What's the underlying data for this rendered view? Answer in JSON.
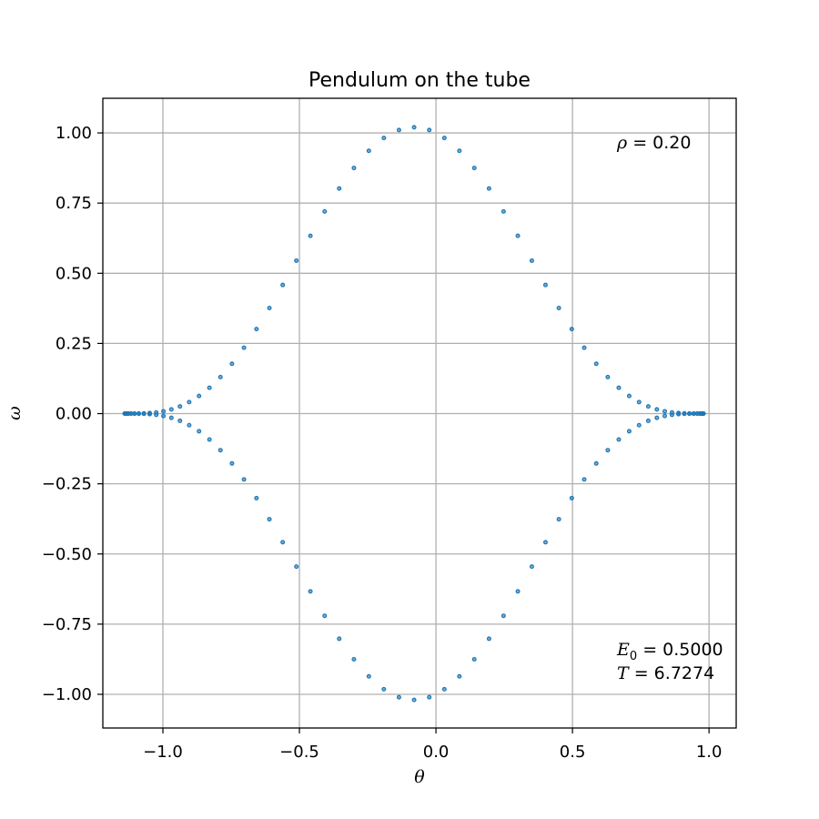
{
  "chart_data": {
    "type": "scatter",
    "title": "Pendulum on the tube",
    "xlabel": "θ",
    "ylabel": "ω",
    "xlim": [
      -1.22,
      1.0995
    ],
    "ylim": [
      -1.12,
      1.1234
    ],
    "xticks": [
      -1.0,
      -0.5,
      0.0,
      0.5,
      1.0
    ],
    "xtick_labels": [
      "−1.0",
      "−0.5",
      "0.0",
      "0.5",
      "1.0"
    ],
    "yticks": [
      1.0,
      0.75,
      0.5,
      0.25,
      0.0,
      -0.25,
      -0.5,
      -0.75,
      -1.0
    ],
    "ytick_labels": [
      "1.00",
      "0.75",
      "0.50",
      "0.25",
      "0.00",
      "−0.25",
      "−0.50",
      "−0.75",
      "−1.00"
    ],
    "grid": true,
    "marker_color": "#1f77b4",
    "orbit": {
      "theta_min": -1.14,
      "theta_max": 0.98,
      "omega_amplitude": 1.02,
      "omega_at_zero": 1.0,
      "sample_count": 120
    },
    "annotations": {
      "rho": {
        "symbol": "ρ",
        "text": " = 0.20"
      },
      "energy": {
        "symbol": "E",
        "subscript": "0",
        "text": " = 0.5000"
      },
      "period": {
        "symbol": "T",
        "text": " = 6.7274"
      }
    }
  }
}
